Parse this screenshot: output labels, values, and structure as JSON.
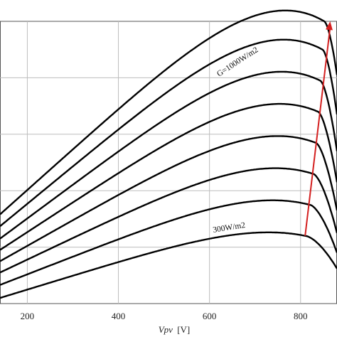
{
  "chart_data": {
    "type": "line",
    "xlabel_italic": "Vpv",
    "xlabel_unit": "[V]",
    "xlim": [
      140,
      880
    ],
    "ylim": [
      0,
      5
    ],
    "x_ticks": [
      200,
      400,
      600,
      800
    ],
    "x_tick_labels": [
      "200",
      "400",
      "600",
      "800"
    ],
    "y_gridlines": [
      1,
      2,
      3,
      4
    ],
    "grid": true,
    "annotations": {
      "top": "G=1000W/m2",
      "bottom": "300W/m2"
    },
    "series_peaks": [
      {
        "x": 810,
        "y": 1.2
      },
      {
        "x": 820,
        "y": 1.75
      },
      {
        "x": 827,
        "y": 2.3
      },
      {
        "x": 833,
        "y": 2.85
      },
      {
        "x": 838,
        "y": 3.4
      },
      {
        "x": 843,
        "y": 3.95
      },
      {
        "x": 848,
        "y": 4.5
      },
      {
        "x": 852,
        "y": 5.0
      }
    ],
    "series_starts": [
      0.1,
      0.33,
      0.55,
      0.75,
      0.95,
      1.15,
      1.37,
      1.58
    ],
    "series_ends": [
      0.62,
      0.9,
      1.25,
      1.65,
      2.15,
      2.7,
      3.35,
      4.05
    ],
    "arrow": {
      "from": {
        "x": 810,
        "y": 1.2
      },
      "to": {
        "x": 865,
        "y": 5.0
      }
    },
    "colors": {
      "curve": "#000000",
      "grid": "#bdbdbd",
      "arrow": "#d42020"
    }
  }
}
